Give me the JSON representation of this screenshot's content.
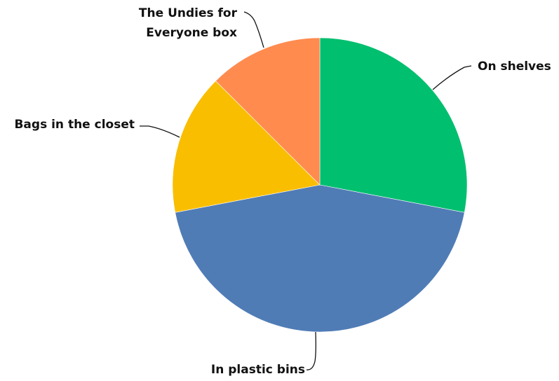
{
  "chart_data": {
    "type": "pie",
    "start_angle_deg": 0,
    "direction": "clockwise",
    "slices": [
      {
        "label": "On shelves",
        "value": 28,
        "color": "#00bf6f"
      },
      {
        "label": "In plastic bins",
        "value": 44,
        "color": "#507cb6"
      },
      {
        "label": "Bags in the closet",
        "value": 15.5,
        "color": "#f9be00"
      },
      {
        "label": "The Undies for Everyone box",
        "label_lines": [
          "The Undies for",
          "Everyone box"
        ],
        "value": 12.5,
        "color": "#ff8b4f"
      }
    ]
  }
}
